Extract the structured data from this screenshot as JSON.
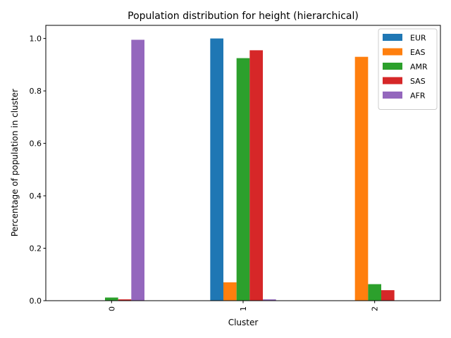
{
  "chart_data": {
    "type": "bar",
    "title": "Population distribution for height (hierarchical)",
    "xlabel": "Cluster",
    "ylabel": "Percentage of population in cluster",
    "categories": [
      "0",
      "1",
      "2"
    ],
    "ylim": [
      0,
      1.05
    ],
    "yticks": [
      "0.0",
      "0.2",
      "0.4",
      "0.6",
      "0.8",
      "1.0"
    ],
    "legend_position": "top-right",
    "grid": false,
    "series": [
      {
        "name": "EUR",
        "color": "#1f77b4",
        "values": [
          0.0,
          1.0,
          0.0
        ]
      },
      {
        "name": "EAS",
        "color": "#ff7f0e",
        "values": [
          0.0,
          0.07,
          0.93
        ]
      },
      {
        "name": "AMR",
        "color": "#2ca02c",
        "values": [
          0.012,
          0.925,
          0.063
        ]
      },
      {
        "name": "SAS",
        "color": "#d62728",
        "values": [
          0.005,
          0.955,
          0.04
        ]
      },
      {
        "name": "AFR",
        "color": "#9467bd",
        "values": [
          0.995,
          0.005,
          0.0
        ]
      }
    ]
  }
}
